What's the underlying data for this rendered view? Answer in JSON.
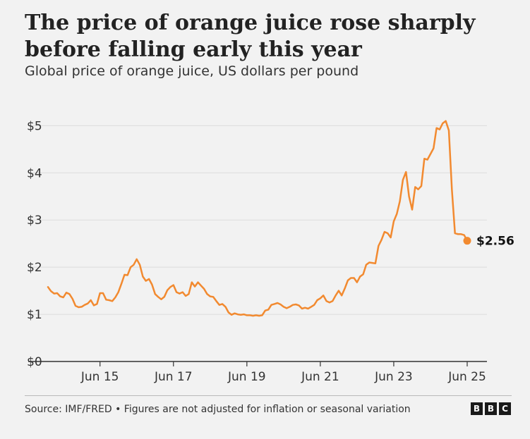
{
  "title": "The price of orange juice rose sharply before falling early this year",
  "subtitle": "Global price of orange juice, US dollars per pound",
  "source": "Source: IMF/FRED • Figures are not adjusted for inflation or seasonal variation",
  "logo": [
    "B",
    "B",
    "C"
  ],
  "colors": {
    "line": "#f28a30",
    "grid": "#dcdcdc",
    "axis": "#333333",
    "background": "#f2f2f2"
  },
  "chart_data": {
    "type": "line",
    "title": "The price of orange juice rose sharply before falling early this year",
    "subtitle": "Global price of orange juice, US dollars per pound",
    "ylim": [
      0,
      5.2
    ],
    "yticks": [
      0,
      1,
      2,
      3,
      4,
      5
    ],
    "ytick_labels": [
      "$0",
      "$1",
      "$2",
      "$3",
      "$4",
      "$5"
    ],
    "xlim": [
      "2014-01",
      "2025-06"
    ],
    "xticks": [
      "2015-06",
      "2017-06",
      "2019-06",
      "2021-06",
      "2023-06",
      "2025-06"
    ],
    "xtick_labels": [
      "Jun 15",
      "Jun 17",
      "Jun 19",
      "Jun 21",
      "Jun 23",
      "Jun 25"
    ],
    "grid": true,
    "end_label": "$2.56",
    "series": [
      {
        "x": [
          "2014-01",
          "2014-02",
          "2014-03",
          "2014-04",
          "2014-05",
          "2014-06",
          "2014-07",
          "2014-08",
          "2014-09",
          "2014-10",
          "2014-11",
          "2014-12",
          "2015-01",
          "2015-02",
          "2015-03",
          "2015-04",
          "2015-05",
          "2015-06",
          "2015-07",
          "2015-08",
          "2015-09",
          "2015-10",
          "2015-11",
          "2015-12",
          "2016-01",
          "2016-02",
          "2016-03",
          "2016-04",
          "2016-05",
          "2016-06",
          "2016-07",
          "2016-08",
          "2016-09",
          "2016-10",
          "2016-11",
          "2016-12",
          "2017-01",
          "2017-02",
          "2017-03",
          "2017-04",
          "2017-05",
          "2017-06",
          "2017-07",
          "2017-08",
          "2017-09",
          "2017-10",
          "2017-11",
          "2017-12",
          "2018-01",
          "2018-02",
          "2018-03",
          "2018-04",
          "2018-05",
          "2018-06",
          "2018-07",
          "2018-08",
          "2018-09",
          "2018-10",
          "2018-11",
          "2018-12",
          "2019-01",
          "2019-02",
          "2019-03",
          "2019-04",
          "2019-05",
          "2019-06",
          "2019-07",
          "2019-08",
          "2019-09",
          "2019-10",
          "2019-11",
          "2019-12",
          "2020-01",
          "2020-02",
          "2020-03",
          "2020-04",
          "2020-05",
          "2020-06",
          "2020-07",
          "2020-08",
          "2020-09",
          "2020-10",
          "2020-11",
          "2020-12",
          "2021-01",
          "2021-02",
          "2021-03",
          "2021-04",
          "2021-05",
          "2021-06",
          "2021-07",
          "2021-08",
          "2021-09",
          "2021-10",
          "2021-11",
          "2021-12",
          "2022-01",
          "2022-02",
          "2022-03",
          "2022-04",
          "2022-05",
          "2022-06",
          "2022-07",
          "2022-08",
          "2022-09",
          "2022-10",
          "2022-11",
          "2022-12",
          "2023-01",
          "2023-02",
          "2023-03",
          "2023-04",
          "2023-05",
          "2023-06",
          "2023-07",
          "2023-08",
          "2023-09",
          "2023-10",
          "2023-11",
          "2023-12",
          "2024-01",
          "2024-02",
          "2024-03",
          "2024-04",
          "2024-05",
          "2024-06",
          "2024-07",
          "2024-08",
          "2024-09",
          "2024-10",
          "2024-11",
          "2024-12",
          "2025-01",
          "2025-02",
          "2025-03",
          "2025-04",
          "2025-05",
          "2025-06"
        ],
        "values": [
          1.58,
          1.49,
          1.44,
          1.45,
          1.38,
          1.36,
          1.46,
          1.43,
          1.33,
          1.18,
          1.15,
          1.16,
          1.2,
          1.23,
          1.3,
          1.19,
          1.22,
          1.45,
          1.45,
          1.31,
          1.3,
          1.28,
          1.36,
          1.47,
          1.65,
          1.84,
          1.83,
          2.0,
          2.05,
          2.17,
          2.05,
          1.8,
          1.71,
          1.75,
          1.63,
          1.43,
          1.37,
          1.32,
          1.37,
          1.51,
          1.58,
          1.62,
          1.47,
          1.44,
          1.47,
          1.39,
          1.43,
          1.68,
          1.59,
          1.68,
          1.61,
          1.54,
          1.43,
          1.38,
          1.37,
          1.28,
          1.2,
          1.22,
          1.16,
          1.04,
          0.99,
          1.02,
          1.0,
          0.99,
          1.0,
          0.98,
          0.98,
          0.97,
          0.98,
          0.97,
          0.98,
          1.08,
          1.1,
          1.2,
          1.22,
          1.24,
          1.21,
          1.16,
          1.13,
          1.16,
          1.2,
          1.21,
          1.19,
          1.12,
          1.14,
          1.12,
          1.16,
          1.2,
          1.3,
          1.34,
          1.4,
          1.28,
          1.25,
          1.28,
          1.4,
          1.5,
          1.4,
          1.55,
          1.72,
          1.77,
          1.77,
          1.68,
          1.8,
          1.85,
          2.05,
          2.1,
          2.09,
          2.08,
          2.45,
          2.58,
          2.75,
          2.72,
          2.63,
          2.97,
          3.13,
          3.4,
          3.85,
          4.02,
          3.5,
          3.22,
          3.7,
          3.65,
          3.72,
          4.3,
          4.28,
          4.4,
          4.52,
          4.95,
          4.92,
          5.05,
          5.1,
          4.9,
          3.65,
          2.72,
          2.7,
          2.7,
          2.68,
          2.56
        ]
      }
    ]
  }
}
